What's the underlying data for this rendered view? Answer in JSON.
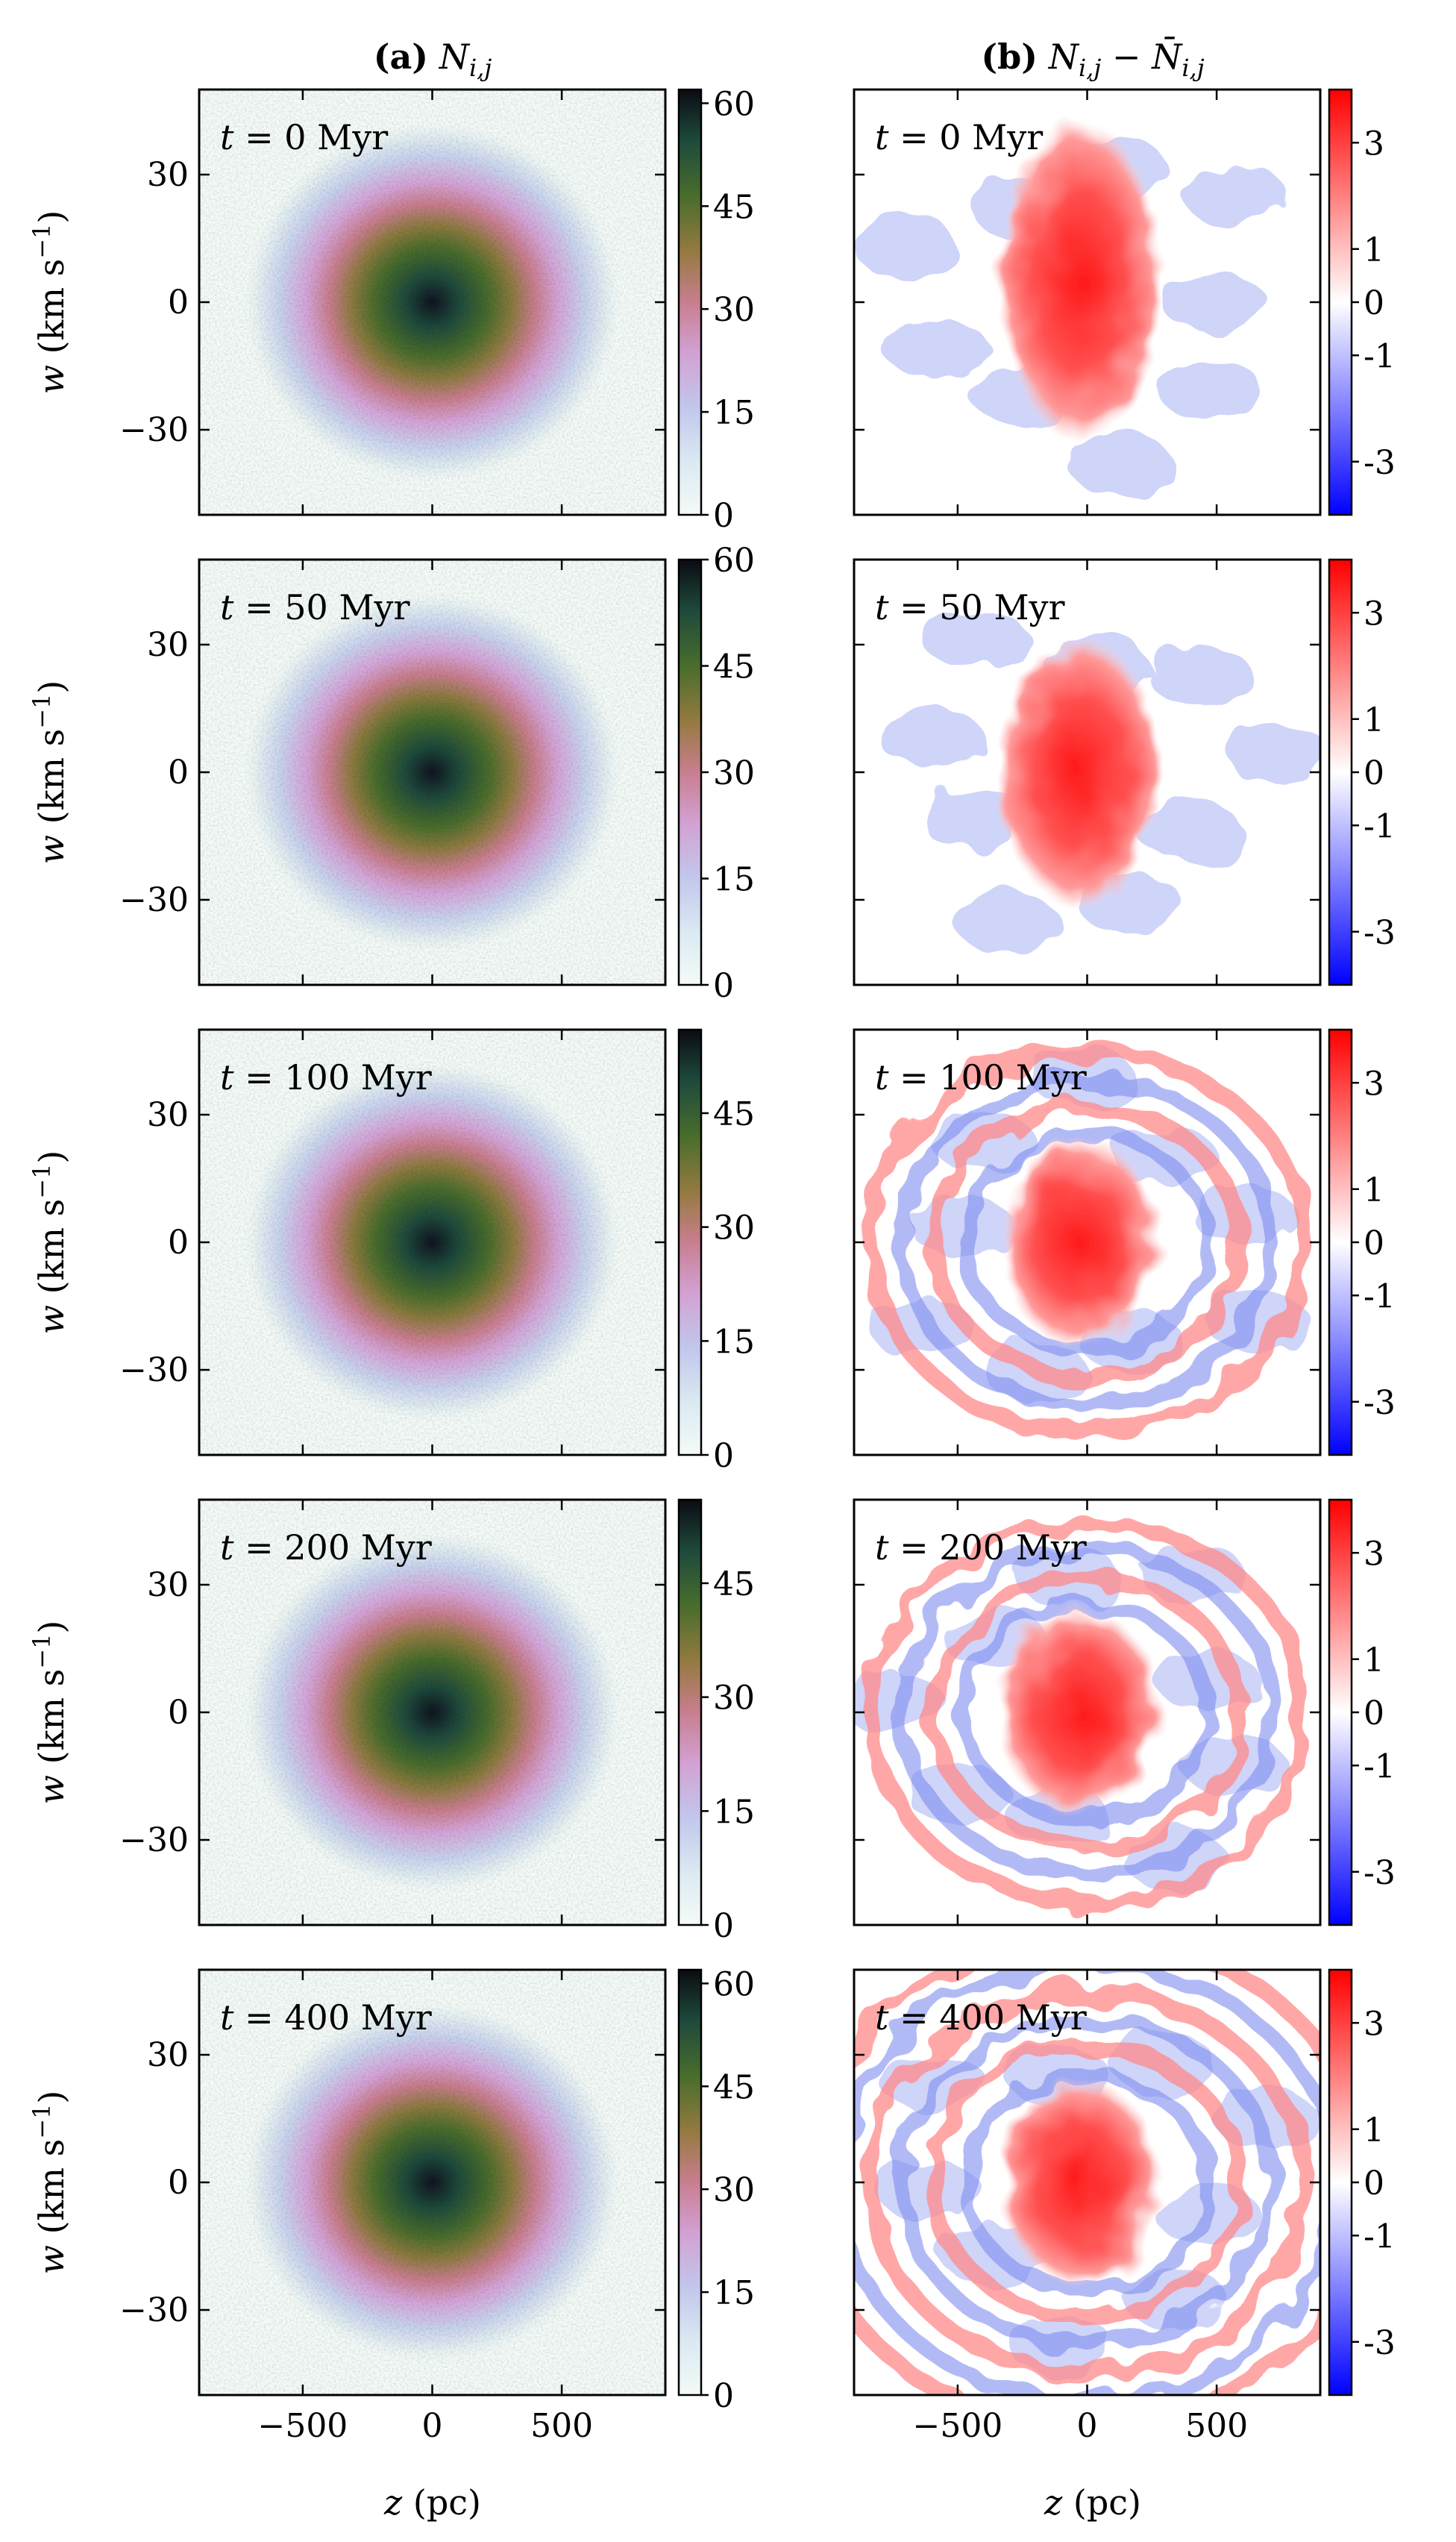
{
  "figure": {
    "left_title": {
      "bold": "(a)",
      "math": "N",
      "sub": "i,j"
    },
    "right_title": {
      "bold": "(b)",
      "math1": "N",
      "sub1": "i,j",
      "minus": " − ",
      "math2": "N̄",
      "sub2": "i,j"
    },
    "xlabel": {
      "math": "z",
      "text": " (pc)"
    },
    "ylabel": {
      "math": "w",
      "text": " (km s",
      "sup": "−1",
      "close": ")"
    }
  },
  "chart_data": [
    {
      "type": "heatmap",
      "panel": "a",
      "title": "(a) N_{i,j}",
      "xlabel": "z (pc)",
      "ylabel": "w (km s^-1)",
      "xlim": [
        -900,
        900
      ],
      "ylim": [
        -50,
        50
      ],
      "xticks": [
        -500,
        0,
        500
      ],
      "xtick_labels": [
        "−500",
        "0",
        "500"
      ],
      "yticks": [
        30,
        0,
        -30
      ],
      "ytick_labels": [
        "30",
        "0",
        "−30"
      ],
      "colormap": "cubehelix-like",
      "colors": [
        "#f4faf7",
        "#c2d8ef",
        "#c79bd4",
        "#c97e8f",
        "#947a3f",
        "#496d2c",
        "#1e4a3c",
        "#0b0b12"
      ],
      "rows": [
        {
          "label": "t = 0 Myr",
          "t_value": "0",
          "vmax": 62,
          "colorbar_ticks": [
            0,
            15,
            30,
            45,
            60
          ],
          "colorbar_tick_labels": [
            "0",
            "15",
            "30",
            "45",
            "60"
          ]
        },
        {
          "label": "t = 50 Myr",
          "t_value": "50",
          "vmax": 60,
          "colorbar_ticks": [
            0,
            15,
            30,
            45,
            60
          ],
          "colorbar_tick_labels": [
            "0",
            "15",
            "30",
            "45",
            "60"
          ]
        },
        {
          "label": "t = 100 Myr",
          "t_value": "100",
          "vmax": 56,
          "colorbar_ticks": [
            0,
            15,
            30,
            45
          ],
          "colorbar_tick_labels": [
            "0",
            "15",
            "30",
            "45"
          ]
        },
        {
          "label": "t = 200 Myr",
          "t_value": "200",
          "vmax": 56,
          "colorbar_ticks": [
            0,
            15,
            30,
            45
          ],
          "colorbar_tick_labels": [
            "0",
            "15",
            "30",
            "45"
          ]
        },
        {
          "label": "t = 400 Myr",
          "t_value": "400",
          "vmax": 62,
          "colorbar_ticks": [
            0,
            15,
            30,
            45,
            60
          ],
          "colorbar_tick_labels": [
            "0",
            "15",
            "30",
            "45",
            "60"
          ]
        }
      ]
    },
    {
      "type": "heatmap",
      "panel": "b",
      "title": "(b) N_{i,j} − N̄_{i,j}",
      "xlabel": "z (pc)",
      "xlim": [
        -900,
        900
      ],
      "ylim": [
        -50,
        50
      ],
      "xticks": [
        -500,
        0,
        500
      ],
      "xtick_labels": [
        "−500",
        "0",
        "500"
      ],
      "colormap": "bwr",
      "colors": [
        "#0000ff",
        "#ffffff",
        "#ff0000"
      ],
      "clim": [
        -4,
        4
      ],
      "colorbar_ticks": [
        3,
        1,
        0,
        -1,
        -3
      ],
      "colorbar_tick_labels": [
        "3",
        "1",
        "0",
        "-1",
        "-3"
      ],
      "rows": [
        {
          "label": "t = 0 Myr",
          "t_value": "0"
        },
        {
          "label": "t = 50 Myr",
          "t_value": "50"
        },
        {
          "label": "t = 100 Myr",
          "t_value": "100"
        },
        {
          "label": "t = 200 Myr",
          "t_value": "200"
        },
        {
          "label": "t = 400 Myr",
          "t_value": "400"
        }
      ]
    }
  ]
}
